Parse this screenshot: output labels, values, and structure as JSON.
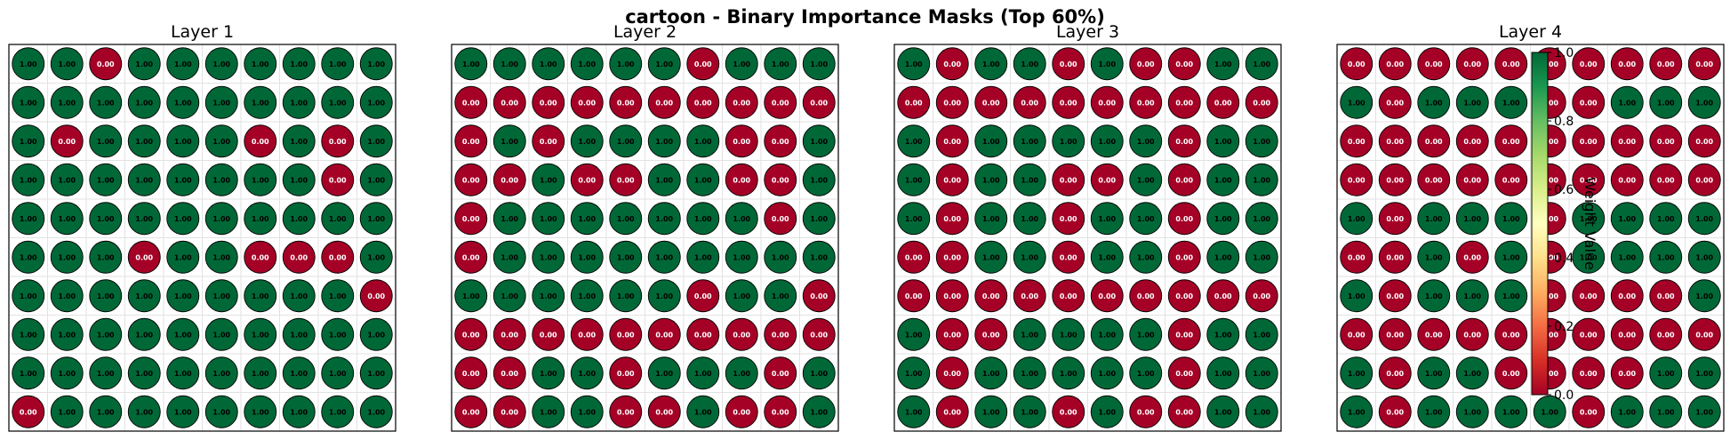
{
  "title": "cartoon - Binary Importance Masks (Top 60%)",
  "colors": {
    "high": "#006837",
    "low": "#a50026"
  },
  "colorbar": {
    "label": "Weight Value",
    "ticks": [
      "0.0",
      "0.2",
      "0.4",
      "0.6",
      "0.8",
      "1.0"
    ],
    "range": [
      0,
      1
    ],
    "colormap": "RdYlGn"
  },
  "chart_data": [
    {
      "type": "heatmap",
      "title": "Layer 1",
      "rows": 10,
      "cols": 10,
      "values": [
        [
          1,
          1,
          0,
          1,
          1,
          1,
          1,
          1,
          1,
          1
        ],
        [
          1,
          1,
          1,
          1,
          1,
          1,
          1,
          1,
          1,
          1
        ],
        [
          1,
          0,
          1,
          1,
          1,
          1,
          0,
          1,
          0,
          1
        ],
        [
          1,
          1,
          1,
          1,
          1,
          1,
          1,
          1,
          0,
          1
        ],
        [
          1,
          1,
          1,
          1,
          1,
          1,
          1,
          1,
          1,
          1
        ],
        [
          1,
          1,
          1,
          0,
          1,
          1,
          0,
          0,
          0,
          1
        ],
        [
          1,
          1,
          1,
          1,
          1,
          1,
          1,
          1,
          1,
          0
        ],
        [
          1,
          1,
          1,
          1,
          1,
          1,
          1,
          1,
          1,
          1
        ],
        [
          1,
          1,
          1,
          1,
          1,
          1,
          1,
          1,
          1,
          1
        ],
        [
          0,
          1,
          1,
          1,
          1,
          1,
          1,
          1,
          1,
          1
        ]
      ]
    },
    {
      "type": "heatmap",
      "title": "Layer 2",
      "rows": 10,
      "cols": 10,
      "values": [
        [
          1,
          1,
          1,
          1,
          1,
          1,
          0,
          1,
          1,
          1
        ],
        [
          0,
          0,
          0,
          0,
          0,
          0,
          0,
          0,
          0,
          0
        ],
        [
          0,
          1,
          0,
          1,
          1,
          1,
          1,
          0,
          0,
          1
        ],
        [
          0,
          0,
          1,
          0,
          0,
          1,
          1,
          0,
          0,
          1
        ],
        [
          0,
          1,
          1,
          1,
          1,
          1,
          1,
          1,
          0,
          1
        ],
        [
          0,
          1,
          1,
          1,
          1,
          1,
          1,
          1,
          1,
          1
        ],
        [
          1,
          1,
          1,
          1,
          1,
          1,
          0,
          1,
          1,
          0
        ],
        [
          0,
          0,
          0,
          0,
          0,
          0,
          0,
          0,
          0,
          0
        ],
        [
          0,
          0,
          1,
          1,
          0,
          1,
          1,
          1,
          0,
          1
        ],
        [
          0,
          0,
          1,
          1,
          0,
          0,
          1,
          0,
          0,
          1
        ]
      ]
    },
    {
      "type": "heatmap",
      "title": "Layer 3",
      "rows": 10,
      "cols": 10,
      "values": [
        [
          1,
          0,
          1,
          1,
          0,
          1,
          0,
          0,
          1,
          1
        ],
        [
          0,
          0,
          0,
          0,
          0,
          0,
          0,
          0,
          0,
          0
        ],
        [
          1,
          0,
          1,
          1,
          1,
          1,
          1,
          0,
          1,
          1
        ],
        [
          1,
          0,
          1,
          1,
          0,
          0,
          1,
          0,
          1,
          1
        ],
        [
          1,
          0,
          1,
          1,
          0,
          1,
          1,
          0,
          1,
          1
        ],
        [
          0,
          0,
          1,
          1,
          0,
          1,
          1,
          0,
          1,
          1
        ],
        [
          0,
          0,
          0,
          0,
          0,
          0,
          0,
          0,
          0,
          0
        ],
        [
          1,
          0,
          0,
          1,
          1,
          1,
          1,
          0,
          1,
          1
        ],
        [
          1,
          0,
          1,
          1,
          1,
          1,
          1,
          0,
          1,
          1
        ],
        [
          1,
          0,
          1,
          1,
          0,
          1,
          0,
          0,
          1,
          1
        ]
      ]
    },
    {
      "type": "heatmap",
      "title": "Layer 4",
      "rows": 10,
      "cols": 10,
      "values": [
        [
          0,
          0,
          0,
          0,
          0,
          0,
          0,
          0,
          0,
          0
        ],
        [
          1,
          0,
          1,
          1,
          1,
          0,
          0,
          1,
          1,
          1
        ],
        [
          0,
          0,
          0,
          0,
          0,
          0,
          0,
          0,
          0,
          0
        ],
        [
          0,
          0,
          0,
          0,
          0,
          0,
          0,
          0,
          0,
          0
        ],
        [
          1,
          0,
          1,
          1,
          1,
          0,
          1,
          1,
          1,
          1
        ],
        [
          0,
          0,
          1,
          0,
          1,
          0,
          1,
          1,
          1,
          1
        ],
        [
          1,
          0,
          1,
          1,
          1,
          0,
          0,
          0,
          0,
          1
        ],
        [
          0,
          0,
          0,
          0,
          0,
          0,
          0,
          0,
          0,
          0
        ],
        [
          1,
          0,
          1,
          1,
          0,
          0,
          0,
          0,
          1,
          1
        ],
        [
          1,
          0,
          1,
          1,
          1,
          1,
          0,
          1,
          1,
          1
        ]
      ]
    }
  ]
}
